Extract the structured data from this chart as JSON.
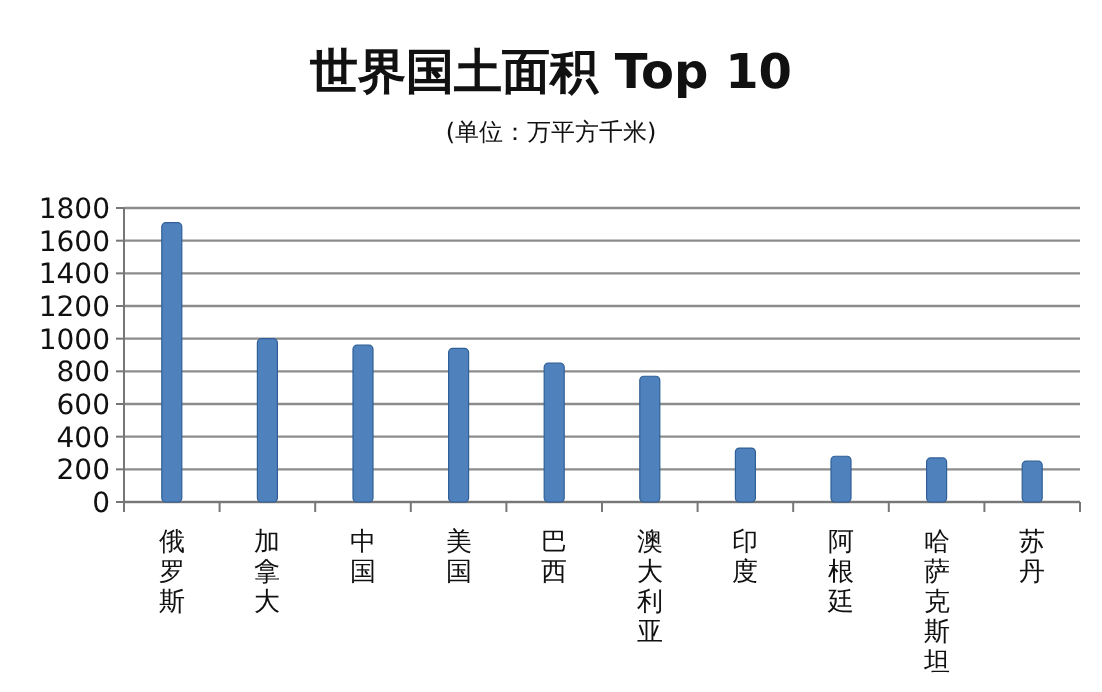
{
  "chart_data": {
    "type": "bar",
    "title": "世界国土面积 Top 10",
    "subtitle": "(单位：万平方千米)",
    "categories": [
      "俄罗斯",
      "加拿大",
      "中国",
      "美国",
      "巴西",
      "澳大利亚",
      "印度",
      "阿根廷",
      "哈萨克斯坦",
      "苏丹"
    ],
    "values": [
      1710,
      1000,
      960,
      940,
      850,
      770,
      330,
      280,
      270,
      250
    ],
    "color": "#4f81bd",
    "ylim": [
      0,
      1800
    ],
    "yticks": [
      0,
      200,
      400,
      600,
      800,
      1000,
      1200,
      1400,
      1600,
      1800
    ],
    "grid": "y"
  }
}
